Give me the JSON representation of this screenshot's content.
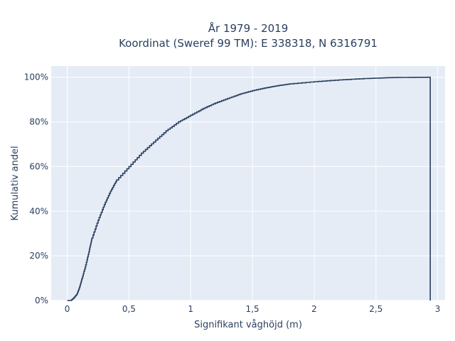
{
  "chart_data": {
    "type": "line",
    "line_shape": "step",
    "title": [
      "År 1979 - 2019",
      "Koordinat (Sweref 99 TM): E 338318, N 6316791"
    ],
    "xlabel": "Signifikant våghöjd (m)",
    "ylabel": "Kumulativ andel",
    "xlim": [
      -0.13,
      3.06
    ],
    "ylim": [
      0,
      1.05
    ],
    "xticks": [
      0,
      0.5,
      1,
      1.5,
      2,
      2.5,
      3
    ],
    "xtick_labels": [
      "0",
      "0,5",
      "1",
      "1,5",
      "2",
      "2,5",
      "3"
    ],
    "yticks": [
      0,
      0.2,
      0.4,
      0.6,
      0.8,
      1.0
    ],
    "ytick_labels": [
      "0%",
      "20%",
      "40%",
      "60%",
      "80%",
      "100%"
    ],
    "grid": true,
    "colors": {
      "line": "#2a3f5f",
      "plot_bg": "#e5ecf6",
      "grid": "#ffffff"
    },
    "series": [
      {
        "x": [
          0.0,
          0.03,
          0.05,
          0.08,
          0.1,
          0.12,
          0.15,
          0.18,
          0.2,
          0.25,
          0.3,
          0.35,
          0.4,
          0.5,
          0.6,
          0.7,
          0.8,
          0.9,
          1.0,
          1.1,
          1.2,
          1.3,
          1.4,
          1.5,
          1.6,
          1.7,
          1.8,
          2.0,
          2.2,
          2.4,
          2.5,
          2.6,
          2.7,
          2.8,
          2.94,
          2.94
        ],
        "y": [
          0.0,
          0.0,
          0.01,
          0.03,
          0.06,
          0.1,
          0.16,
          0.23,
          0.28,
          0.36,
          0.43,
          0.49,
          0.54,
          0.6,
          0.66,
          0.71,
          0.76,
          0.8,
          0.83,
          0.86,
          0.885,
          0.905,
          0.925,
          0.94,
          0.952,
          0.962,
          0.97,
          0.98,
          0.988,
          0.994,
          0.996,
          0.998,
          0.999,
          0.9995,
          1.0,
          0.0
        ]
      }
    ]
  }
}
